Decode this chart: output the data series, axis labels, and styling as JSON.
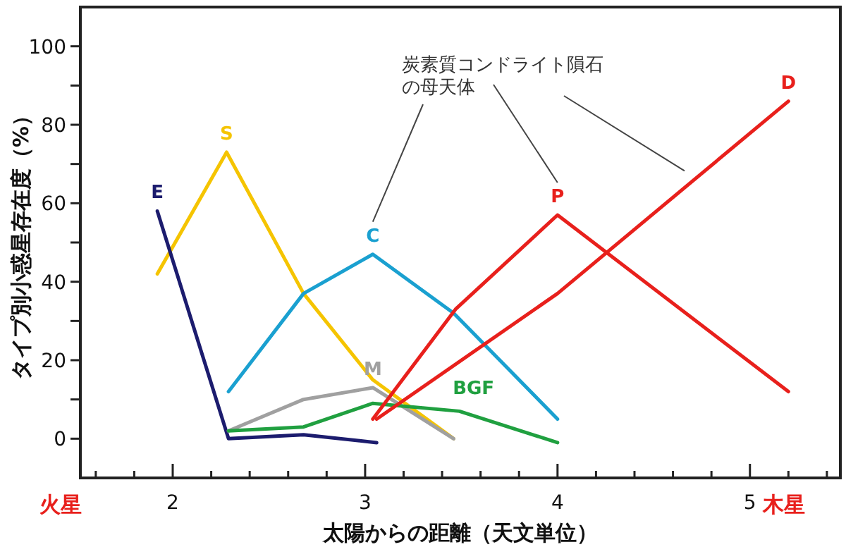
{
  "chart_data": {
    "type": "line",
    "xlabel": "太陽からの距離（天文単位）",
    "ylabel": "タイプ別小惑星存在度（%）",
    "xlim": [
      1.52,
      5.47
    ],
    "ylim": [
      -10,
      110
    ],
    "xticks": [
      {
        "value": 1.6,
        "label": null
      },
      {
        "value": 1.8,
        "label": null
      },
      2,
      {
        "value": 2.2,
        "label": null
      },
      {
        "value": 2.4,
        "label": null
      },
      {
        "value": 2.6,
        "label": null
      },
      {
        "value": 2.8,
        "label": null
      },
      3,
      {
        "value": 3.2,
        "label": null
      },
      {
        "value": 3.4,
        "label": null
      },
      {
        "value": 3.6,
        "label": null
      },
      {
        "value": 3.8,
        "label": null
      },
      4,
      {
        "value": 4.2,
        "label": null
      },
      {
        "value": 4.4,
        "label": null
      },
      {
        "value": 4.6,
        "label": null
      },
      {
        "value": 4.8,
        "label": null
      },
      5,
      {
        "value": 5.2,
        "label": null
      },
      {
        "value": 5.4,
        "label": null
      }
    ],
    "yticks": [
      0,
      {
        "value": 10,
        "label": null
      },
      20,
      {
        "value": 30,
        "label": null
      },
      40,
      {
        "value": 50,
        "label": null
      },
      60,
      {
        "value": 70,
        "label": null
      },
      80,
      {
        "value": 90,
        "label": null
      },
      100
    ],
    "grid": false,
    "marker": "none",
    "line_style": "solid",
    "annotations": [
      "炭素質コンドライト隕石の母天体",
      "火星",
      "木星"
    ],
    "series": [
      {
        "name": "S",
        "color": "#f5c400",
        "x": [
          1.92,
          2.28,
          2.68,
          3.04,
          3.46
        ],
        "values": [
          42,
          73,
          37,
          15,
          0
        ]
      },
      {
        "name": "E",
        "color": "#1c1c6e",
        "x": [
          1.92,
          2.29,
          2.68,
          3.06
        ],
        "values": [
          58,
          0,
          1,
          -1
        ]
      },
      {
        "name": "C",
        "color": "#1aa0d0",
        "x": [
          2.29,
          2.68,
          3.04,
          3.46,
          4.0
        ],
        "values": [
          12,
          37,
          47,
          32,
          5
        ]
      },
      {
        "name": "M",
        "color": "#a0a0a0",
        "x": [
          2.29,
          2.68,
          3.04,
          3.46
        ],
        "values": [
          2,
          10,
          13,
          0
        ]
      },
      {
        "name": "BGF",
        "color": "#20a040",
        "x": [
          2.29,
          2.68,
          3.04,
          3.49,
          4.0
        ],
        "values": [
          2,
          3,
          9,
          7,
          -1
        ]
      },
      {
        "name": "P",
        "color": "#e8201c",
        "x": [
          3.04,
          3.47,
          4.0,
          5.2
        ],
        "values": [
          5,
          33,
          57,
          12
        ]
      },
      {
        "name": "D",
        "color": "#e8201c",
        "x": [
          3.06,
          4.0,
          5.2
        ],
        "values": [
          5,
          37,
          86
        ]
      }
    ]
  }
}
